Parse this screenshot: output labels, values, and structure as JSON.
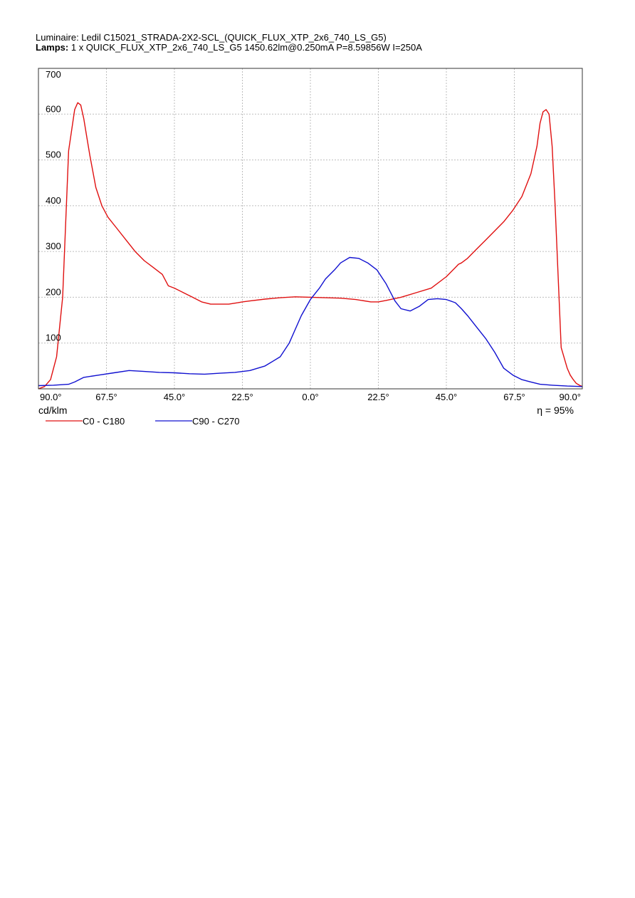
{
  "header": {
    "luminaire_line": "Luminaire: Ledil C15021_STRADA-2X2-SCL_(QUICK_FLUX_XTP_2x6_740_LS_G5)",
    "lamps_label": "Lamps:",
    "lamps_value": " 1 x QUICK_FLUX_XTP_2x6_740_LS_G5  1450.62lm@0.250mA  P=8.59856W  I=250A"
  },
  "chart_data": {
    "type": "line",
    "title": "",
    "xlabel": "",
    "ylabel": "",
    "unit_label": "cd/klm",
    "efficiency_label": "η = 95%",
    "x_tick_labels": [
      "90.0°",
      "67.5°",
      "45.0°",
      "22.5°",
      "0.0°",
      "22.5°",
      "45.0°",
      "67.5°",
      "90.0°"
    ],
    "x_ticks": [
      -90,
      -67.5,
      -45,
      -22.5,
      0,
      22.5,
      45,
      67.5,
      90
    ],
    "y_ticks": [
      100,
      200,
      300,
      400,
      500,
      600,
      700
    ],
    "xlim": [
      -90,
      90
    ],
    "ylim": [
      0,
      700
    ],
    "grid": true,
    "legend_position": "bottom-left",
    "series": [
      {
        "name": "C0 - C180",
        "color": "#e01010",
        "x": [
          -90,
          -88,
          -86,
          -84,
          -82,
          -80,
          -78,
          -77,
          -76,
          -75,
          -74,
          -73,
          -71,
          -69,
          -67,
          -64,
          -61,
          -58,
          -55,
          -52,
          -49,
          -47,
          -45,
          -42,
          -39,
          -36,
          -33,
          -30,
          -27,
          -24,
          -22.5,
          -20,
          -15,
          -10,
          -5,
          0,
          5,
          10,
          15,
          20,
          22.5,
          25,
          30,
          35,
          40,
          45,
          48,
          49,
          50,
          52,
          55,
          58,
          61,
          64,
          67,
          70,
          73,
          75,
          76,
          77,
          78,
          79,
          80,
          81,
          83,
          85,
          86,
          87,
          88,
          89,
          90
        ],
        "y": [
          0,
          5,
          20,
          70,
          200,
          520,
          610,
          625,
          620,
          590,
          550,
          510,
          440,
          400,
          375,
          350,
          325,
          300,
          280,
          265,
          250,
          225,
          220,
          210,
          200,
          190,
          185,
          185,
          185,
          188,
          190,
          192,
          196,
          199,
          201,
          200,
          199,
          198,
          195,
          190,
          190,
          193,
          200,
          210,
          220,
          245,
          265,
          272,
          275,
          285,
          305,
          325,
          345,
          365,
          390,
          420,
          470,
          530,
          580,
          605,
          610,
          600,
          530,
          400,
          90,
          45,
          30,
          20,
          12,
          8,
          5
        ]
      },
      {
        "name": "C90 - C270",
        "color": "#1010d0",
        "x": [
          -90,
          -85,
          -80,
          -78,
          -75,
          -70,
          -65,
          -60,
          -55,
          -50,
          -45,
          -40,
          -35,
          -30,
          -25,
          -20,
          -15,
          -10,
          -7,
          -5,
          -3,
          0,
          3,
          5,
          8,
          10,
          13,
          16,
          19,
          22,
          25,
          28,
          30,
          33,
          36,
          39,
          42,
          45,
          48,
          50,
          52,
          55,
          58,
          61,
          64,
          67,
          70,
          73,
          76,
          80,
          85,
          90
        ],
        "y": [
          7,
          8,
          10,
          15,
          25,
          30,
          35,
          40,
          38,
          36,
          35,
          33,
          32,
          34,
          36,
          40,
          50,
          70,
          100,
          130,
          160,
          195,
          220,
          240,
          260,
          275,
          287,
          285,
          275,
          260,
          230,
          192,
          175,
          170,
          180,
          195,
          197,
          195,
          188,
          175,
          160,
          135,
          110,
          80,
          45,
          30,
          20,
          15,
          10,
          8,
          6,
          5
        ]
      }
    ]
  }
}
